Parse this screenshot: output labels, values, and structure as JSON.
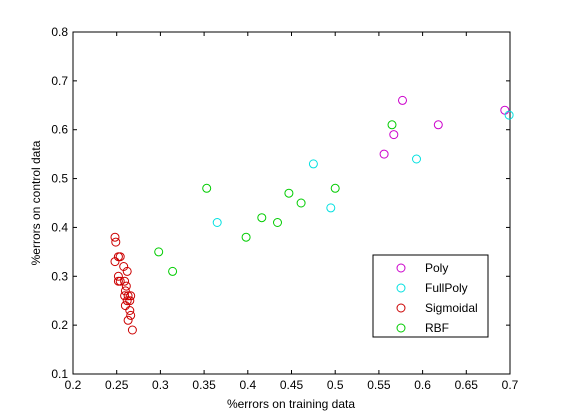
{
  "chart_data": {
    "type": "scatter",
    "title": "",
    "xlabel": "%errors on training data",
    "ylabel": "%errors on control data",
    "xlim": [
      0.2,
      0.7
    ],
    "ylim": [
      0.1,
      0.8
    ],
    "xticks": [
      "0.2",
      "0.25",
      "0.3",
      "0.35",
      "0.4",
      "0.45",
      "0.5",
      "0.55",
      "0.6",
      "0.65",
      "0.7"
    ],
    "yticks": [
      "0.1",
      "0.2",
      "0.3",
      "0.4",
      "0.5",
      "0.6",
      "0.7",
      "0.8"
    ],
    "grid": false,
    "legend_position": "bottom-right",
    "series": [
      {
        "name": "Poly",
        "color": "#cc00cc",
        "marker": "circle-open",
        "points": [
          [
            0.577,
            0.66
          ],
          [
            0.567,
            0.59
          ],
          [
            0.556,
            0.55
          ],
          [
            0.618,
            0.61
          ],
          [
            0.694,
            0.64
          ]
        ]
      },
      {
        "name": "FullPoly",
        "color": "#00e0e0",
        "marker": "circle-open",
        "points": [
          [
            0.699,
            0.63
          ],
          [
            0.593,
            0.54
          ],
          [
            0.475,
            0.53
          ],
          [
            0.495,
            0.44
          ],
          [
            0.365,
            0.41
          ]
        ]
      },
      {
        "name": "Sigmoidal",
        "color": "#cc0000",
        "marker": "circle-open",
        "points": [
          [
            0.248,
            0.38
          ],
          [
            0.249,
            0.37
          ],
          [
            0.254,
            0.34
          ],
          [
            0.252,
            0.34
          ],
          [
            0.248,
            0.33
          ],
          [
            0.258,
            0.32
          ],
          [
            0.262,
            0.31
          ],
          [
            0.252,
            0.3
          ],
          [
            0.254,
            0.29
          ],
          [
            0.252,
            0.29
          ],
          [
            0.259,
            0.29
          ],
          [
            0.261,
            0.28
          ],
          [
            0.26,
            0.27
          ],
          [
            0.263,
            0.26
          ],
          [
            0.259,
            0.26
          ],
          [
            0.266,
            0.26
          ],
          [
            0.262,
            0.25
          ],
          [
            0.265,
            0.25
          ],
          [
            0.26,
            0.24
          ],
          [
            0.265,
            0.23
          ],
          [
            0.266,
            0.22
          ],
          [
            0.263,
            0.21
          ],
          [
            0.268,
            0.19
          ]
        ]
      },
      {
        "name": "RBF",
        "color": "#00cc00",
        "marker": "circle-open",
        "points": [
          [
            0.565,
            0.61
          ],
          [
            0.5,
            0.48
          ],
          [
            0.447,
            0.47
          ],
          [
            0.461,
            0.45
          ],
          [
            0.353,
            0.48
          ],
          [
            0.416,
            0.42
          ],
          [
            0.434,
            0.41
          ],
          [
            0.398,
            0.38
          ],
          [
            0.298,
            0.35
          ],
          [
            0.314,
            0.31
          ]
        ]
      }
    ]
  }
}
